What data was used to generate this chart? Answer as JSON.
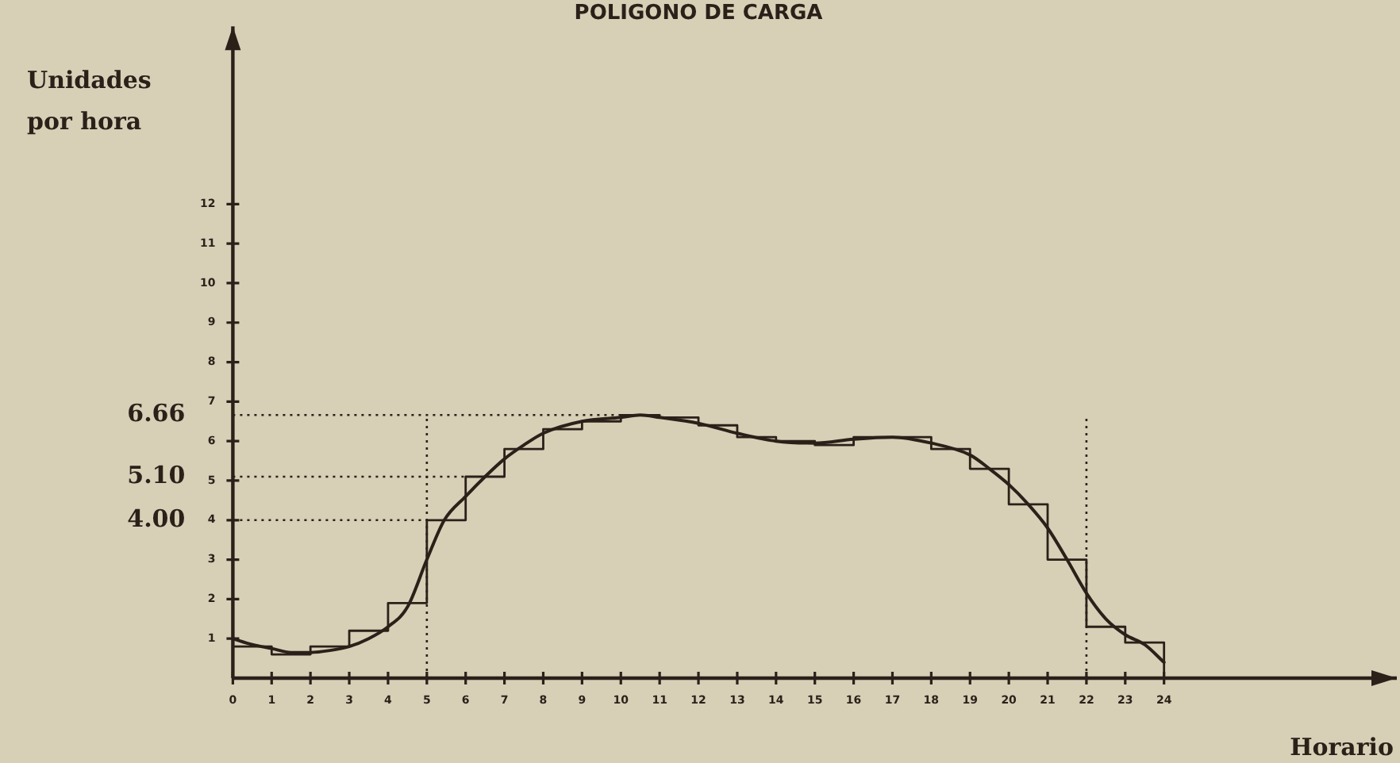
{
  "chart_data": {
    "type": "line",
    "title": "POLIGONO DE CARGA",
    "xlabel": "Horario",
    "ylabel": "Unidades por hora",
    "xlim": [
      0,
      30
    ],
    "xticks": [
      0,
      1,
      2,
      3,
      4,
      5,
      6,
      7,
      8,
      9,
      10,
      11,
      12,
      13,
      14,
      15,
      16,
      17,
      18,
      19,
      20,
      21,
      22,
      23,
      24
    ],
    "ylim": [
      0,
      16.5
    ],
    "yticks": [
      1,
      2,
      3,
      4,
      5,
      6,
      7,
      8,
      9,
      10,
      11,
      12
    ],
    "series": [
      {
        "type": "step",
        "color": "#2b2119",
        "x": [
          0,
          1,
          2,
          3,
          4,
          5,
          6,
          7,
          8,
          9,
          10,
          11,
          12,
          13,
          14,
          15,
          16,
          17,
          18,
          19,
          20,
          21,
          22,
          23,
          24
        ],
        "values": [
          0.8,
          0.6,
          0.8,
          1.2,
          1.9,
          4.0,
          5.1,
          5.8,
          6.3,
          6.5,
          6.66,
          6.6,
          6.4,
          6.1,
          6.0,
          5.9,
          6.1,
          6.1,
          5.8,
          5.3,
          4.4,
          3.0,
          1.3,
          0.9,
          0
        ]
      },
      {
        "type": "line",
        "color": "#2b2119",
        "x": [
          0,
          0.5,
          1,
          1.5,
          2,
          2.5,
          3,
          3.5,
          4,
          4.5,
          5,
          5.45,
          6,
          6.5,
          7,
          7.5,
          8,
          9,
          10,
          10.5,
          11,
          12,
          13,
          14,
          15,
          16,
          17,
          18,
          19,
          19.5,
          20,
          20.5,
          21,
          21.5,
          22,
          22.5,
          23,
          23.5,
          24
        ],
        "values": [
          1.0,
          0.85,
          0.75,
          0.65,
          0.65,
          0.7,
          0.8,
          1.0,
          1.3,
          1.8,
          3.0,
          4.0,
          4.6,
          5.1,
          5.55,
          5.9,
          6.2,
          6.5,
          6.6,
          6.66,
          6.6,
          6.45,
          6.2,
          6.0,
          5.95,
          6.05,
          6.1,
          5.95,
          5.65,
          5.3,
          4.9,
          4.4,
          3.8,
          3.0,
          2.15,
          1.5,
          1.1,
          0.85,
          0.4
        ]
      }
    ],
    "ref_lines": [
      {
        "axis": "y",
        "value": 6.66,
        "label": "6.66",
        "line_style": "dotted"
      },
      {
        "axis": "y",
        "value": 5.1,
        "label": "5.10",
        "line_style": "dotted"
      },
      {
        "axis": "y",
        "value": 4.0,
        "label": "4.00",
        "line_style": "dotted"
      },
      {
        "axis": "x",
        "value": 5,
        "line_style": "dotted"
      },
      {
        "axis": "x",
        "value": 22,
        "line_style": "dotted"
      }
    ],
    "marker": "none",
    "line_style": "solid"
  }
}
